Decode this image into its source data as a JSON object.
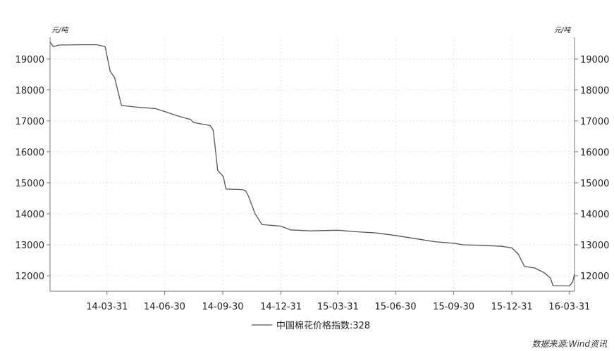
{
  "chart_data": {
    "type": "line",
    "y_unit_left": "元/吨",
    "y_unit_right": "元/吨",
    "ylim": [
      11500,
      19700
    ],
    "y_ticks": [
      12000,
      13000,
      14000,
      15000,
      16000,
      17000,
      18000,
      19000
    ],
    "x_ticks": [
      "14-03-31",
      "14-06-30",
      "14-09-30",
      "14-12-31",
      "15-03-31",
      "15-06-30",
      "15-09-30",
      "15-12-31",
      "16-03-31"
    ],
    "xlim": [
      "2013-12-31",
      "2016-04-08"
    ],
    "grid": true,
    "legend_position": "bottom-center",
    "series": [
      {
        "name": "中国棉花价格指数:328",
        "points": [
          [
            "2013-12-31",
            19550
          ],
          [
            "2014-01-05",
            19400
          ],
          [
            "2014-01-15",
            19450
          ],
          [
            "2014-02-15",
            19460
          ],
          [
            "2014-03-15",
            19460
          ],
          [
            "2014-03-28",
            19400
          ],
          [
            "2014-04-02",
            18900
          ],
          [
            "2014-04-05",
            18600
          ],
          [
            "2014-04-12",
            18400
          ],
          [
            "2014-04-18",
            17900
          ],
          [
            "2014-04-23",
            17500
          ],
          [
            "2014-05-15",
            17450
          ],
          [
            "2014-06-15",
            17400
          ],
          [
            "2014-07-01",
            17300
          ],
          [
            "2014-07-15",
            17200
          ],
          [
            "2014-07-31",
            17100
          ],
          [
            "2014-08-10",
            17050
          ],
          [
            "2014-08-15",
            16950
          ],
          [
            "2014-09-10",
            16850
          ],
          [
            "2014-09-15",
            16700
          ],
          [
            "2014-09-22",
            15400
          ],
          [
            "2014-10-01",
            15200
          ],
          [
            "2014-10-05",
            14800
          ],
          [
            "2014-10-31",
            14780
          ],
          [
            "2014-11-05",
            14750
          ],
          [
            "2014-11-10",
            14550
          ],
          [
            "2014-11-20",
            14000
          ],
          [
            "2014-12-01",
            13650
          ],
          [
            "2014-12-31",
            13600
          ],
          [
            "2015-01-15",
            13480
          ],
          [
            "2015-02-15",
            13450
          ],
          [
            "2015-03-31",
            13470
          ],
          [
            "2015-04-30",
            13420
          ],
          [
            "2015-05-31",
            13380
          ],
          [
            "2015-06-30",
            13300
          ],
          [
            "2015-07-31",
            13200
          ],
          [
            "2015-08-31",
            13100
          ],
          [
            "2015-09-30",
            13050
          ],
          [
            "2015-10-15",
            13000
          ],
          [
            "2015-11-15",
            12980
          ],
          [
            "2015-12-15",
            12950
          ],
          [
            "2015-12-31",
            12900
          ],
          [
            "2016-01-10",
            12700
          ],
          [
            "2016-01-20",
            12300
          ],
          [
            "2016-02-05",
            12250
          ],
          [
            "2016-02-20",
            12100
          ],
          [
            "2016-03-01",
            11920
          ],
          [
            "2016-03-05",
            11680
          ],
          [
            "2016-03-31",
            11670
          ],
          [
            "2016-04-05",
            11800
          ],
          [
            "2016-04-08",
            12050
          ]
        ]
      }
    ],
    "source": "数据来源:Wind资讯"
  }
}
